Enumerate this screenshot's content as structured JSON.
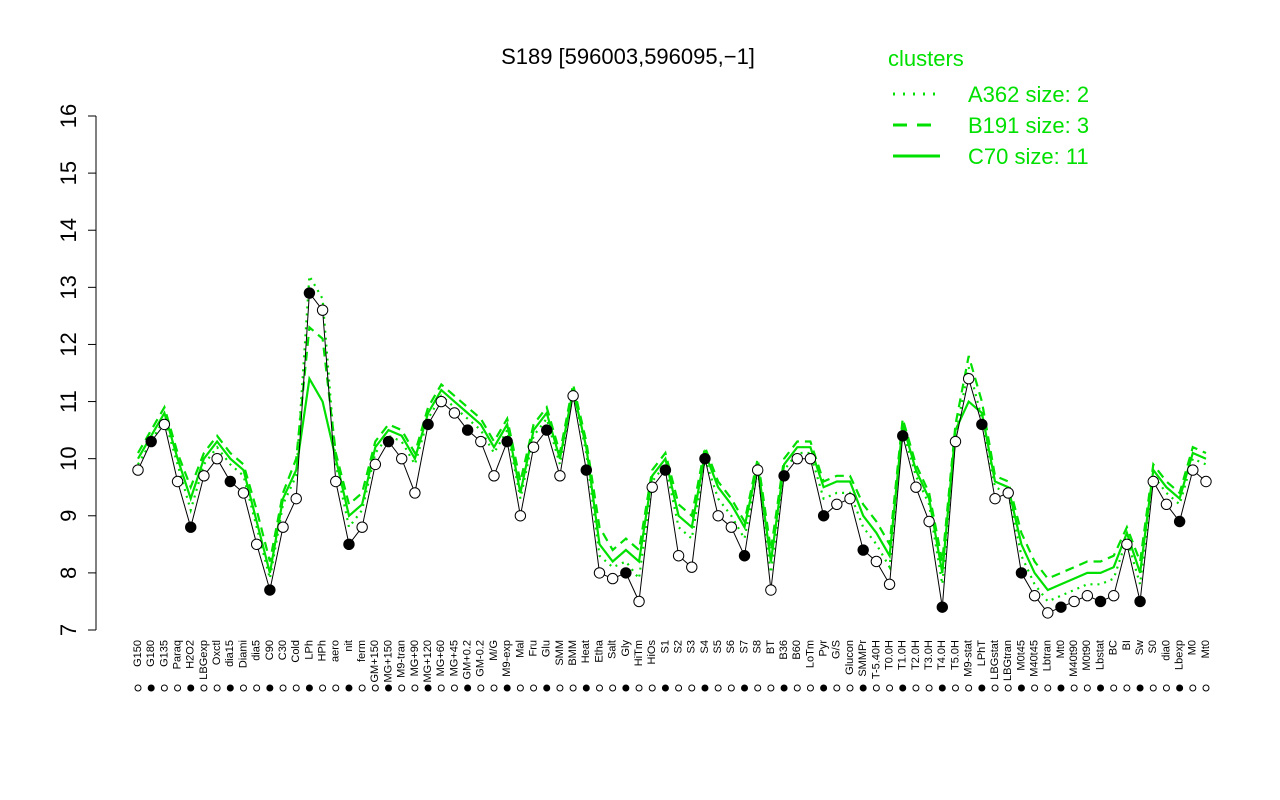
{
  "chart_data": {
    "type": "line",
    "title": "S189 [596003,596095,−1]",
    "ylim": [
      7,
      16
    ],
    "yticks": [
      7,
      8,
      9,
      10,
      11,
      12,
      13,
      14,
      15,
      16
    ],
    "legend": {
      "title": "clusters",
      "placement": "top-right",
      "entries": [
        {
          "label": "A362 size: 2",
          "style": "dotted"
        },
        {
          "label": "B191 size: 3",
          "style": "dashed"
        },
        {
          "label": "C70 size: 11",
          "style": "solid"
        }
      ]
    },
    "colors": {
      "cluster": "#00e000",
      "points": "#000000"
    },
    "categories": [
      "G150",
      "G180",
      "G135",
      "Paraq",
      "H2O2",
      "LBGexp",
      "Oxctl",
      "dia15",
      "Diami",
      "dia5",
      "C90",
      "C30",
      "Cold",
      "LPh",
      "HPh",
      "aero",
      "nit",
      "ferm",
      "GM+150",
      "MG+150",
      "M9-tran",
      "MG+90",
      "MG+120",
      "MG+60",
      "MG+45",
      "GM+0.2",
      "GM-0.2",
      "M/G",
      "M9-exp",
      "Mal",
      "Fru",
      "Glu",
      "SMM",
      "BMM",
      "Heat",
      "Etha",
      "Salt",
      "Gly",
      "HiTm",
      "HiOs",
      "S1",
      "S2",
      "S3",
      "S4",
      "S5",
      "S6",
      "S7",
      "S8",
      "BT",
      "B36",
      "B60",
      "LoTm",
      "Pyr",
      "G/S",
      "Glucon",
      "SMMPr",
      "T-5.40H",
      "T0.0H",
      "T1.0H",
      "T2.0H",
      "T3.0H",
      "T4.0H",
      "T5.0H",
      "M9-stat",
      "LPhT",
      "LBGstat",
      "LBGtran",
      "M0t45",
      "M40t45",
      "Lbtran",
      "Mt0",
      "M40t90",
      "M0t90",
      "Lbstat",
      "BC",
      "BI",
      "Sw",
      "S0",
      "dia0",
      "Lbexp",
      "M0",
      "Mt0"
    ],
    "series": [
      {
        "role": "black-points",
        "x": [
          1,
          2,
          3,
          4,
          5,
          6,
          7,
          8,
          9,
          10,
          11,
          12,
          13,
          14,
          15,
          16,
          17,
          18,
          19,
          20,
          21,
          22,
          23,
          24,
          25,
          26,
          27,
          28,
          29,
          30,
          31,
          32,
          33,
          34,
          35,
          36,
          37,
          38,
          39,
          40,
          41,
          42,
          43,
          44,
          45,
          46,
          47,
          48,
          49,
          50,
          51,
          52,
          53,
          54,
          55,
          56,
          57,
          58,
          59,
          60,
          61,
          62,
          63,
          64,
          65,
          66,
          67,
          68,
          69,
          70,
          71,
          72,
          73,
          74,
          75,
          76,
          77,
          78,
          79,
          80,
          81,
          82
        ],
        "values": [
          9.8,
          10.3,
          10.6,
          9.6,
          8.8,
          9.7,
          10.0,
          9.6,
          9.4,
          8.5,
          7.7,
          8.8,
          9.3,
          12.9,
          12.6,
          9.6,
          8.5,
          8.8,
          9.9,
          10.3,
          10.0,
          9.4,
          10.6,
          11.0,
          10.8,
          10.5,
          10.3,
          9.7,
          10.3,
          9.0,
          10.2,
          10.5,
          9.7,
          11.1,
          9.8,
          8.0,
          7.9,
          8.0,
          7.5,
          9.5,
          9.8,
          8.3,
          8.1,
          10.0,
          9.0,
          8.8,
          8.3,
          9.8,
          7.7,
          9.7,
          10.0,
          10.0,
          9.0,
          9.2,
          9.3,
          8.4,
          8.2,
          7.8,
          10.4,
          9.5,
          8.9,
          7.4,
          10.3,
          11.4,
          10.6,
          9.3,
          9.4,
          8.0,
          7.6,
          7.3,
          7.4,
          7.5,
          7.6,
          7.5,
          7.6,
          8.5,
          7.5,
          9.6,
          9.2,
          8.9,
          9.8,
          9.6
        ]
      },
      {
        "role": "C70",
        "values": [
          10.0,
          10.4,
          10.8,
          10.0,
          9.3,
          10.0,
          10.3,
          10.0,
          9.8,
          8.9,
          8.0,
          9.3,
          9.8,
          11.4,
          11.0,
          10.0,
          9.0,
          9.2,
          10.2,
          10.5,
          10.4,
          10.0,
          10.8,
          11.2,
          11.0,
          10.8,
          10.6,
          10.2,
          10.6,
          9.4,
          10.5,
          10.8,
          10.0,
          11.2,
          10.2,
          8.5,
          8.2,
          8.4,
          8.2,
          9.7,
          10.0,
          9.0,
          8.8,
          10.1,
          9.5,
          9.2,
          8.8,
          9.9,
          8.2,
          9.9,
          10.2,
          10.2,
          9.5,
          9.6,
          9.6,
          9.0,
          8.7,
          8.3,
          10.6,
          9.8,
          9.3,
          8.0,
          10.5,
          11.0,
          10.8,
          9.6,
          9.5,
          8.5,
          8.0,
          7.7,
          7.8,
          7.9,
          8.0,
          8.0,
          8.1,
          8.7,
          8.0,
          9.8,
          9.5,
          9.3,
          10.1,
          10.0
        ]
      },
      {
        "role": "B191",
        "values": [
          10.1,
          10.5,
          10.9,
          10.1,
          9.5,
          10.1,
          10.4,
          10.1,
          9.9,
          9.1,
          8.2,
          9.4,
          10.0,
          12.3,
          12.1,
          10.1,
          9.2,
          9.4,
          10.3,
          10.6,
          10.5,
          10.1,
          10.9,
          11.3,
          11.1,
          10.9,
          10.7,
          10.3,
          10.7,
          9.6,
          10.6,
          10.9,
          10.1,
          11.3,
          10.3,
          8.8,
          8.4,
          8.6,
          8.4,
          9.8,
          10.1,
          9.2,
          9.0,
          10.2,
          9.6,
          9.3,
          8.9,
          10.0,
          8.4,
          10.0,
          10.3,
          10.3,
          9.6,
          9.7,
          9.7,
          9.2,
          8.9,
          8.5,
          10.7,
          9.9,
          9.4,
          8.2,
          10.6,
          11.8,
          11.0,
          9.7,
          9.6,
          8.7,
          8.2,
          7.9,
          8.0,
          8.1,
          8.2,
          8.2,
          8.3,
          8.8,
          8.2,
          9.9,
          9.6,
          9.4,
          10.2,
          10.1
        ]
      },
      {
        "role": "A362",
        "values": [
          9.9,
          10.3,
          10.7,
          9.9,
          9.1,
          9.9,
          10.2,
          9.9,
          9.7,
          8.8,
          7.9,
          9.2,
          9.7,
          13.2,
          12.8,
          9.9,
          8.8,
          9.1,
          10.1,
          10.4,
          10.3,
          9.9,
          10.7,
          11.1,
          10.9,
          10.7,
          10.5,
          10.1,
          10.5,
          9.3,
          10.4,
          10.7,
          9.9,
          11.2,
          10.1,
          8.3,
          8.1,
          8.2,
          7.9,
          9.6,
          9.9,
          8.8,
          8.6,
          10.0,
          9.3,
          9.0,
          8.6,
          9.8,
          8.0,
          9.8,
          10.1,
          10.1,
          9.3,
          9.4,
          9.4,
          8.8,
          8.5,
          8.1,
          10.5,
          9.7,
          9.2,
          7.8,
          10.4,
          11.6,
          10.7,
          9.5,
          9.4,
          8.3,
          7.8,
          7.5,
          7.6,
          7.7,
          7.8,
          7.8,
          7.9,
          8.6,
          7.8,
          9.7,
          9.4,
          9.2,
          10.0,
          9.9
        ]
      }
    ]
  }
}
